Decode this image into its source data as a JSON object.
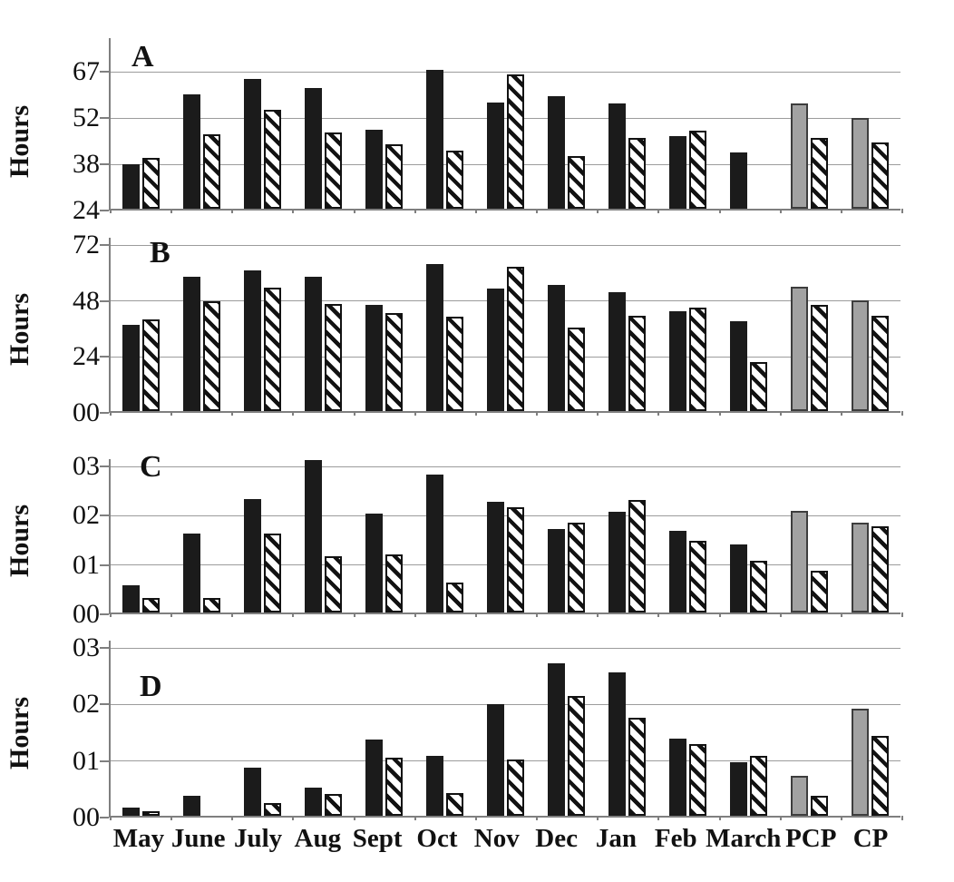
{
  "styles": {
    "solid_bar_color": "#1b1b1b",
    "alt_solid_bar_color": "#a2a2a2",
    "hatch_stripe_color": "#121212",
    "hatch_background": "#ffffff",
    "gridline_color": "#9c9c9c",
    "axis_color": "#7f7f7f",
    "alt_color_categories": [
      "PCP",
      "CP"
    ]
  },
  "chart_data": [
    {
      "type": "bar",
      "panel_label": "A",
      "ylabel": "Hours",
      "ylim": [
        24,
        67
      ],
      "tick_values": [
        24,
        38,
        52,
        67
      ],
      "tick_labels_top_down": [
        "67",
        "52",
        "38",
        "24"
      ],
      "grid": true,
      "legend": "none",
      "categories": [
        "May",
        "June",
        "July",
        "Aug",
        "Sept",
        "Oct",
        "Nov",
        "Dec",
        "Jan",
        "Feb",
        "March",
        "PCP",
        "CP"
      ],
      "series": [
        {
          "name": "solid",
          "values": [
            37.5,
            59,
            64,
            61,
            48,
            67,
            56.5,
            58.5,
            56,
            46,
            41,
            56,
            51.5
          ]
        },
        {
          "name": "hatched",
          "values": [
            39.5,
            46.5,
            54,
            47,
            43.5,
            41.5,
            65.5,
            40,
            45.5,
            47.5,
            null,
            45.5,
            44
          ]
        }
      ]
    },
    {
      "type": "bar",
      "panel_label": "B",
      "ylabel": "Hours",
      "ylim": [
        0,
        72
      ],
      "tick_values": [
        0,
        24,
        48,
        72
      ],
      "tick_labels_top_down": [
        "72",
        "48",
        "24",
        "00"
      ],
      "grid": true,
      "legend": "none",
      "categories": [
        "May",
        "June",
        "July",
        "Aug",
        "Sept",
        "Oct",
        "Nov",
        "Dec",
        "Jan",
        "Feb",
        "March",
        "PCP",
        "CP"
      ],
      "series": [
        {
          "name": "solid",
          "values": [
            37,
            57.5,
            60.5,
            57.5,
            45.5,
            63,
            52.5,
            54,
            51,
            43,
            38.5,
            53.5,
            47.5
          ]
        },
        {
          "name": "hatched",
          "values": [
            39.5,
            47,
            53,
            46,
            42,
            40.5,
            62,
            36,
            41,
            44.5,
            21,
            45.5,
            41
          ]
        }
      ]
    },
    {
      "type": "bar",
      "panel_label": "C",
      "ylabel": "Hours",
      "ylim": [
        0,
        3
      ],
      "tick_values": [
        0,
        1,
        2,
        3
      ],
      "tick_labels_top_down": [
        "03",
        "02",
        "01",
        "00"
      ],
      "grid": true,
      "legend": "none",
      "categories": [
        "May",
        "June",
        "July",
        "Aug",
        "Sept",
        "Oct",
        "Nov",
        "Dec",
        "Jan",
        "Feb",
        "March",
        "PCP",
        "CP"
      ],
      "series": [
        {
          "name": "solid",
          "values": [
            0.55,
            1.6,
            2.3,
            3.1,
            2.0,
            2.8,
            2.25,
            1.7,
            2.05,
            1.65,
            1.38,
            2.07,
            1.83
          ]
        },
        {
          "name": "hatched",
          "values": [
            0.3,
            0.3,
            1.6,
            1.15,
            1.18,
            0.6,
            2.13,
            1.82,
            2.28,
            1.45,
            1.05,
            0.85,
            1.75
          ]
        }
      ]
    },
    {
      "type": "bar",
      "panel_label": "D",
      "ylabel": "Hours",
      "ylim": [
        0,
        3
      ],
      "tick_values": [
        0,
        1,
        2,
        3
      ],
      "tick_labels_top_down": [
        "03",
        "02",
        "01",
        "00"
      ],
      "grid": true,
      "legend": "none",
      "categories": [
        "May",
        "June",
        "July",
        "Aug",
        "Sept",
        "Oct",
        "Nov",
        "Dec",
        "Jan",
        "Feb",
        "March",
        "PCP",
        "CP"
      ],
      "series": [
        {
          "name": "solid",
          "values": [
            0.15,
            0.36,
            0.85,
            0.5,
            1.35,
            1.06,
            1.97,
            2.7,
            2.53,
            1.36,
            0.94,
            0.7,
            1.89
          ]
        },
        {
          "name": "hatched",
          "values": [
            0.08,
            null,
            0.23,
            0.38,
            1.02,
            0.4,
            1.0,
            2.12,
            1.73,
            1.27,
            1.06,
            0.35,
            1.42
          ]
        }
      ]
    }
  ],
  "x_axis": {
    "labels": [
      "May",
      "June",
      "July",
      "Aug",
      "Sept",
      "Oct",
      "Nov",
      "Dec",
      "Jan",
      "Feb",
      "March",
      "PCP",
      "CP"
    ]
  }
}
